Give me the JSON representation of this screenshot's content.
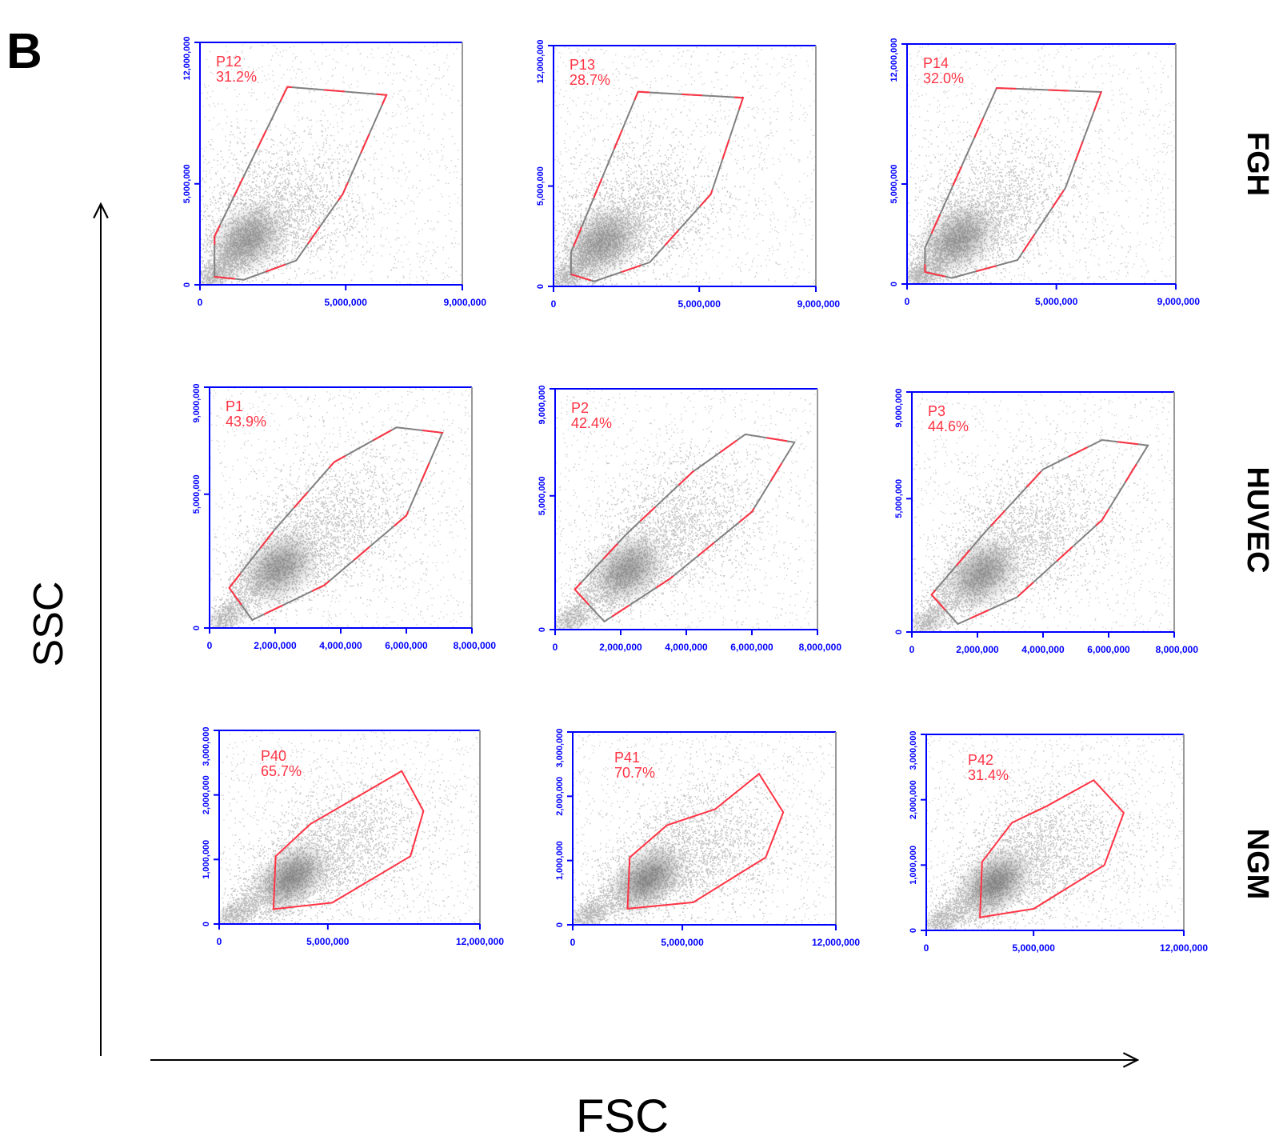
{
  "figure": {
    "panel_letter": "B",
    "x_axis_label": "FSC",
    "y_axis_label": "SSC",
    "row_labels": [
      "FGH",
      "HUVEC",
      "NGM"
    ],
    "colors": {
      "axis": "#0000ff",
      "gate": "#ff3344",
      "gate_outline": "#808080",
      "density": "#555555"
    }
  },
  "chart_data": [
    {
      "type": "scatter",
      "row": "FGH",
      "gate": "P12",
      "percent": "31.2%",
      "xlim": [
        0,
        9000000
      ],
      "ylim": [
        0,
        12000000
      ],
      "xticks": [
        "0",
        "5,000,000",
        "9,000,000"
      ],
      "yticks": [
        "0",
        "5,000,000",
        "12,000,000"
      ],
      "gate_polygon": [
        [
          500000,
          400000
        ],
        [
          1500000,
          250000
        ],
        [
          3300000,
          1200000
        ],
        [
          4900000,
          4500000
        ],
        [
          6400000,
          9400000
        ],
        [
          3000000,
          9800000
        ],
        [
          500000,
          2400000
        ]
      ]
    },
    {
      "type": "scatter",
      "row": "FGH",
      "gate": "P13",
      "percent": "28.7%",
      "xlim": [
        0,
        9000000
      ],
      "ylim": [
        0,
        12000000
      ],
      "xticks": [
        "0",
        "5,000,000",
        "9,000,000"
      ],
      "yticks": [
        "0",
        "5,000,000",
        "12,000,000"
      ],
      "gate_polygon": [
        [
          600000,
          600000
        ],
        [
          1400000,
          250000
        ],
        [
          3300000,
          1200000
        ],
        [
          5400000,
          4600000
        ],
        [
          6500000,
          9400000
        ],
        [
          2900000,
          9700000
        ],
        [
          600000,
          1700000
        ]
      ]
    },
    {
      "type": "scatter",
      "row": "FGH",
      "gate": "P14",
      "percent": "32.0%",
      "xlim": [
        0,
        9000000
      ],
      "ylim": [
        0,
        12000000
      ],
      "xticks": [
        "0",
        "5,000,000",
        "9,000,000"
      ],
      "yticks": [
        "0",
        "5,000,000",
        "12,000,000"
      ],
      "gate_polygon": [
        [
          600000,
          600000
        ],
        [
          1500000,
          300000
        ],
        [
          3700000,
          1200000
        ],
        [
          5300000,
          4800000
        ],
        [
          6500000,
          9600000
        ],
        [
          3000000,
          9800000
        ],
        [
          600000,
          1800000
        ]
      ]
    },
    {
      "type": "scatter",
      "row": "HUVEC",
      "gate": "P1",
      "percent": "43.9%",
      "xlim": [
        0,
        8000000
      ],
      "ylim": [
        0,
        9000000
      ],
      "xticks": [
        "0",
        "2,000,000",
        "4,000,000",
        "6,000,000",
        "8,000,000"
      ],
      "yticks": [
        "0",
        "5,000,000",
        "9,000,000"
      ],
      "gate_polygon": [
        [
          600000,
          1500000
        ],
        [
          1300000,
          300000
        ],
        [
          3500000,
          1600000
        ],
        [
          6000000,
          4200000
        ],
        [
          7100000,
          7300000
        ],
        [
          5700000,
          7500000
        ],
        [
          3800000,
          6200000
        ],
        [
          2000000,
          3700000
        ]
      ]
    },
    {
      "type": "scatter",
      "row": "HUVEC",
      "gate": "P2",
      "percent": "42.4%",
      "xlim": [
        0,
        8000000
      ],
      "ylim": [
        0,
        9000000
      ],
      "xticks": [
        "0",
        "2,000,000",
        "4,000,000",
        "6,000,000",
        "8,000,000"
      ],
      "yticks": [
        "0",
        "5,000,000",
        "9,000,000"
      ],
      "gate_polygon": [
        [
          600000,
          1500000
        ],
        [
          1500000,
          300000
        ],
        [
          3500000,
          1900000
        ],
        [
          6000000,
          4400000
        ],
        [
          7300000,
          7000000
        ],
        [
          5800000,
          7300000
        ],
        [
          4200000,
          5900000
        ],
        [
          2200000,
          3600000
        ]
      ]
    },
    {
      "type": "scatter",
      "row": "HUVEC",
      "gate": "P3",
      "percent": "44.6%",
      "xlim": [
        0,
        8000000
      ],
      "ylim": [
        0,
        9000000
      ],
      "xticks": [
        "0",
        "2,000,000",
        "4,000,000",
        "6,000,000",
        "8,000,000"
      ],
      "yticks": [
        "0",
        "5,000,000",
        "9,000,000"
      ],
      "gate_polygon": [
        [
          600000,
          1400000
        ],
        [
          1400000,
          300000
        ],
        [
          3200000,
          1300000
        ],
        [
          5800000,
          4200000
        ],
        [
          7200000,
          7000000
        ],
        [
          5800000,
          7200000
        ],
        [
          4000000,
          6100000
        ],
        [
          2200000,
          3700000
        ]
      ]
    },
    {
      "type": "scatter",
      "row": "NGM",
      "gate": "P40",
      "percent": "65.7%",
      "xlim": [
        0,
        12000000
      ],
      "ylim": [
        0,
        3000000
      ],
      "xticks": [
        "0",
        "5,000,000",
        "12,000,000"
      ],
      "yticks": [
        "0",
        "1,000,000",
        "2,000,000",
        "3,000,000"
      ],
      "gate_polygon": [
        [
          2500000,
          230000
        ],
        [
          5200000,
          330000
        ],
        [
          8800000,
          1050000
        ],
        [
          9400000,
          1750000
        ],
        [
          8400000,
          2370000
        ],
        [
          6000000,
          1900000
        ],
        [
          4200000,
          1550000
        ],
        [
          2600000,
          1050000
        ]
      ]
    },
    {
      "type": "scatter",
      "row": "NGM",
      "gate": "P41",
      "percent": "70.7%",
      "xlim": [
        0,
        12000000
      ],
      "ylim": [
        0,
        3000000
      ],
      "xticks": [
        "0",
        "5,000,000",
        "12,000,000"
      ],
      "yticks": [
        "0",
        "1,000,000",
        "2,000,000",
        "3,000,000"
      ],
      "gate_polygon": [
        [
          2500000,
          250000
        ],
        [
          5500000,
          350000
        ],
        [
          8800000,
          1050000
        ],
        [
          9600000,
          1750000
        ],
        [
          8500000,
          2350000
        ],
        [
          6500000,
          1800000
        ],
        [
          4300000,
          1550000
        ],
        [
          2600000,
          1050000
        ]
      ]
    },
    {
      "type": "scatter",
      "row": "NGM",
      "gate": "P42",
      "percent": "31.4%",
      "xlim": [
        0,
        12000000
      ],
      "ylim": [
        0,
        3000000
      ],
      "xticks": [
        "0",
        "5,000,000",
        "12,000,000"
      ],
      "yticks": [
        "0",
        "1,000,000",
        "2,000,000",
        "3,000,000"
      ],
      "gate_polygon": [
        [
          2500000,
          200000
        ],
        [
          5000000,
          330000
        ],
        [
          8300000,
          1000000
        ],
        [
          9200000,
          1800000
        ],
        [
          7800000,
          2300000
        ],
        [
          5600000,
          1900000
        ],
        [
          4000000,
          1650000
        ],
        [
          2600000,
          1050000
        ]
      ]
    }
  ]
}
